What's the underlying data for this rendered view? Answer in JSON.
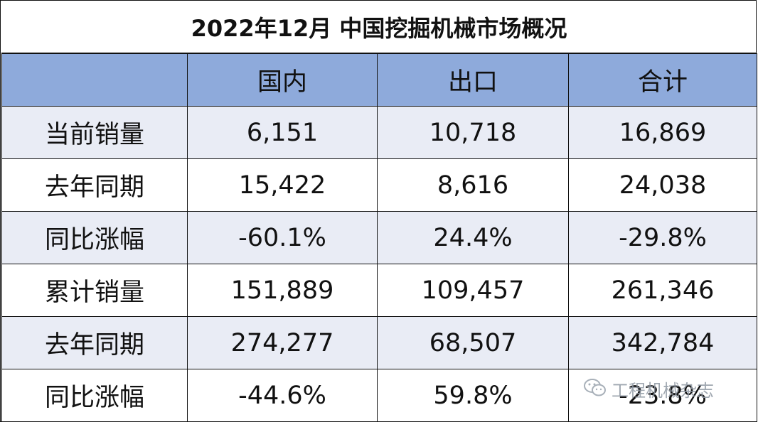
{
  "title": "2022年12月 中国挖掘机械市场概况",
  "columns": [
    "",
    "国内",
    "出口",
    "合计"
  ],
  "rows": [
    {
      "label": "当前销量",
      "domestic": "6,151",
      "export": "10,718",
      "total": "16,869"
    },
    {
      "label": "去年同期",
      "domestic": "15,422",
      "export": "8,616",
      "total": "24,038"
    },
    {
      "label": "同比涨幅",
      "domestic": "-60.1%",
      "export": "24.4%",
      "total": "-29.8%"
    },
    {
      "label": "累计销量",
      "domestic": "151,889",
      "export": "109,457",
      "total": "261,346"
    },
    {
      "label": "去年同期",
      "domestic": "274,277",
      "export": "68,507",
      "total": "342,784"
    },
    {
      "label": "同比涨幅",
      "domestic": "-44.6%",
      "export": "59.8%",
      "total": "-23.8%"
    }
  ],
  "watermark": {
    "icon": "wechat-icon",
    "text": "工程机械杂志"
  },
  "colors": {
    "header_bg": "#8eaadb",
    "shade_row": "#e9ecf5",
    "border": "#111111"
  }
}
